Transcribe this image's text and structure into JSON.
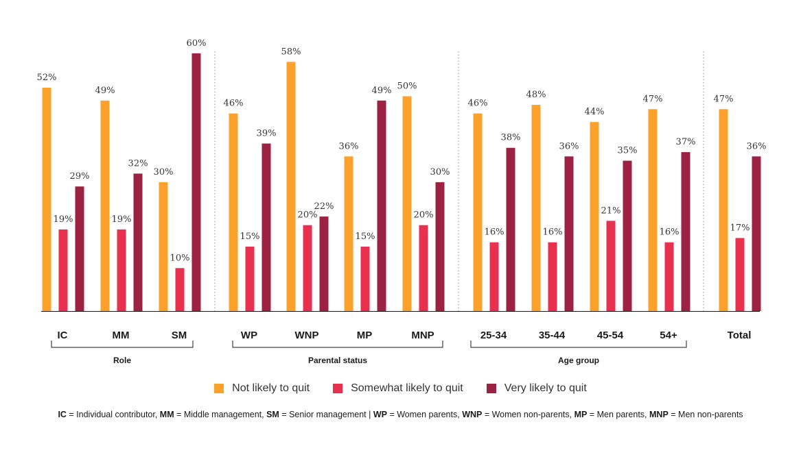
{
  "chart_data": {
    "type": "bar",
    "series_names": [
      "Not likely to quit",
      "Somewhat likely to quit",
      "Very likely to quit"
    ],
    "colors": [
      "#FBA12C",
      "#E8304F",
      "#9B2242"
    ],
    "groups": [
      {
        "label": "Role",
        "categories": [
          {
            "label": "IC",
            "values": [
              52,
              19,
              29
            ],
            "value_labels": [
              "52%",
              "19%",
              "29%"
            ]
          },
          {
            "label": "MM",
            "values": [
              49,
              19,
              32
            ],
            "value_labels": [
              "49%",
              "19%",
              "32%"
            ]
          },
          {
            "label": "SM",
            "values": [
              30,
              10,
              60
            ],
            "value_labels": [
              "30%",
              "10%",
              "60%"
            ]
          }
        ]
      },
      {
        "label": "Parental status",
        "categories": [
          {
            "label": "WP",
            "values": [
              46,
              15,
              39
            ],
            "value_labels": [
              "46%",
              "15%",
              "39%"
            ]
          },
          {
            "label": "WNP",
            "values": [
              58,
              20,
              22
            ],
            "value_labels": [
              "58%",
              "20%",
              "22%"
            ]
          },
          {
            "label": "MP",
            "values": [
              36,
              15,
              49
            ],
            "value_labels": [
              "36%",
              "15%",
              "49%"
            ]
          },
          {
            "label": "MNP",
            "values": [
              50,
              20,
              30
            ],
            "value_labels": [
              "50%",
              "20%",
              "30%"
            ]
          }
        ]
      },
      {
        "label": "Age group",
        "categories": [
          {
            "label": "25-34",
            "values": [
              46,
              16,
              38
            ],
            "value_labels": [
              "46%",
              "16%",
              "38%"
            ]
          },
          {
            "label": "35-44",
            "values": [
              48,
              16,
              36
            ],
            "value_labels": [
              "48%",
              "16%",
              "36%"
            ]
          },
          {
            "label": "45-54",
            "values": [
              44,
              21,
              35
            ],
            "value_labels": [
              "44%",
              "21%",
              "35%"
            ]
          },
          {
            "label": "54+",
            "values": [
              47,
              16,
              37
            ],
            "value_labels": [
              "47%",
              "16%",
              "37%"
            ]
          }
        ]
      },
      {
        "label": "",
        "categories": [
          {
            "label": "Total",
            "values": [
              47,
              17,
              36
            ],
            "value_labels": [
              "47%",
              "17%",
              "36%"
            ]
          }
        ]
      }
    ],
    "ylim": [
      0,
      60
    ],
    "grid": false,
    "legend_position": "bottom"
  },
  "legend": {
    "items": [
      "Not likely to quit",
      "Somewhat likely to quit",
      "Very likely to quit"
    ]
  },
  "footnote": {
    "ic_abbr": "IC",
    "ic_text": " = Individual contributor,  ",
    "mm_abbr": "MM",
    "mm_text": " = Middle management, ",
    "sm_abbr": "SM",
    "sm_text": " = Senior management | ",
    "wp_abbr": "WP",
    "wp_text": " = Women parents, ",
    "wnp_abbr": "WNP",
    "wnp_text": " = Women non-parents, ",
    "mp_abbr": "MP",
    "mp_text": " = Men parents, ",
    "mnp_abbr": "MNP",
    "mnp_text": " = Men non-parents"
  }
}
